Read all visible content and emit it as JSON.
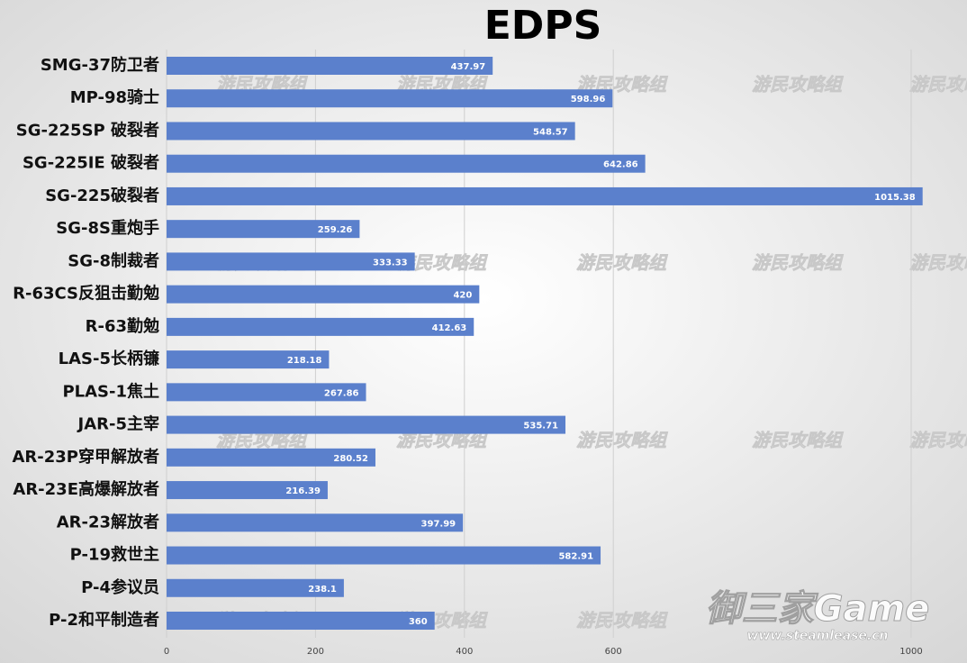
{
  "chart_data": {
    "type": "hbar",
    "title": "EDPS",
    "categories": [
      "SMG-37防卫者",
      "MP-98骑士",
      "SG-225SP 破裂者",
      "SG-225IE 破裂者",
      "SG-225破裂者",
      "SG-8S重炮手",
      "SG-8制裁者",
      "R-63CS反狙击勤勉",
      "R-63勤勉",
      "LAS-5长柄镰",
      "PLAS-1焦土",
      "JAR-5主宰",
      "AR-23P穿甲解放者",
      "AR-23E高爆解放者",
      "AR-23解放者",
      "P-19救世主",
      "P-4参议员",
      "P-2和平制造者"
    ],
    "values": [
      437.97,
      598.96,
      548.57,
      642.86,
      1015.38,
      259.26,
      333.33,
      420,
      412.63,
      218.18,
      267.86,
      535.71,
      280.52,
      216.39,
      397.99,
      582.91,
      238.1,
      360
    ],
    "color": "#5b80cc",
    "xlim": [
      0,
      1075
    ],
    "xticks": [
      0,
      200,
      400,
      600,
      1000
    ],
    "grid": true,
    "watermark": "御三家Game",
    "watermark_url": "www.steamlease.cn",
    "watermark_tile": "游民攻略组"
  }
}
